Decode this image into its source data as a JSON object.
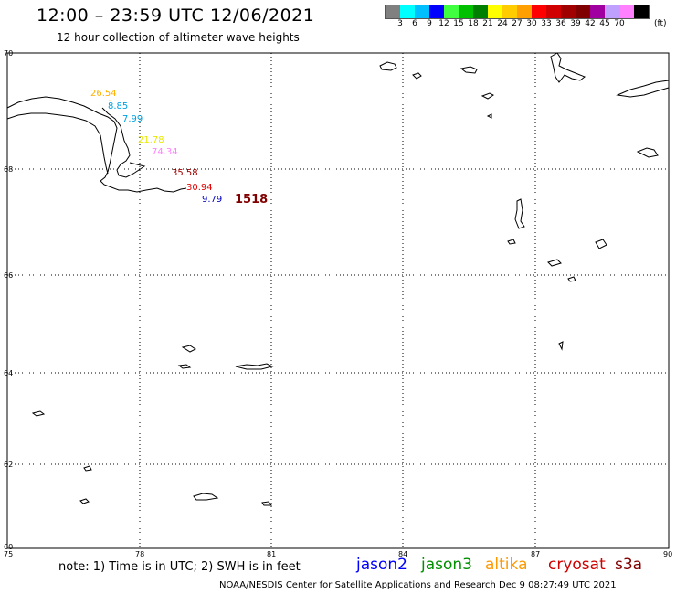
{
  "header": {
    "title": "12:00 – 23:59 UTC 12/06/2021",
    "subtitle": "12 hour collection of altimeter wave heights"
  },
  "colorbar": {
    "colors": [
      "#808080",
      "#00ffff",
      "#00bfff",
      "#0000ff",
      "#40ff40",
      "#00c000",
      "#008000",
      "#ffff00",
      "#ffcc00",
      "#ffa000",
      "#ff0000",
      "#d00000",
      "#a00000",
      "#800000",
      "#a000a0",
      "#c0a0ff",
      "#ff80ff",
      "#000000"
    ],
    "labels": [
      "3",
      "6",
      "9",
      "12",
      "15",
      "18",
      "21",
      "24",
      "27",
      "30",
      "33",
      "36",
      "39",
      "42",
      "45",
      "70"
    ],
    "unit": "(ft)"
  },
  "map": {
    "lat_labels": [
      "70",
      "68",
      "66",
      "64",
      "62",
      "60"
    ],
    "lon_labels": [
      "75",
      "78",
      "81",
      "84",
      "87",
      "90"
    ]
  },
  "wave_heights": [
    {
      "value": "26.54",
      "color": "#ffb000"
    },
    {
      "value": "8.85",
      "color": "#00a0e0"
    },
    {
      "value": "7.99",
      "color": "#00a0e0"
    },
    {
      "value": "21.78",
      "color": "#e8e800"
    },
    {
      "value": "74.34",
      "color": "#ff80ff"
    },
    {
      "value": "35.58",
      "color": "#a00000"
    },
    {
      "value": "30.94",
      "color": "#e00000"
    },
    {
      "value": "9.79",
      "color": "#0000c0"
    }
  ],
  "pass_time": {
    "value": "1518",
    "color": "#800000"
  },
  "footer": {
    "note": "note: 1) Time is in UTC; 2) SWH is in feet",
    "satellites": [
      {
        "name": "jason2",
        "color": "#0000ff"
      },
      {
        "name": "jason3",
        "color": "#009000"
      },
      {
        "name": "altika",
        "color": "#ff9900"
      },
      {
        "name": "cryosat",
        "color": "#d00000"
      },
      {
        "name": "s3a",
        "color": "#800000"
      }
    ],
    "credit": "NOAA/NESDIS Center for Satellite Applications and Research    Dec  9 08:27:49 UTC 2021"
  }
}
